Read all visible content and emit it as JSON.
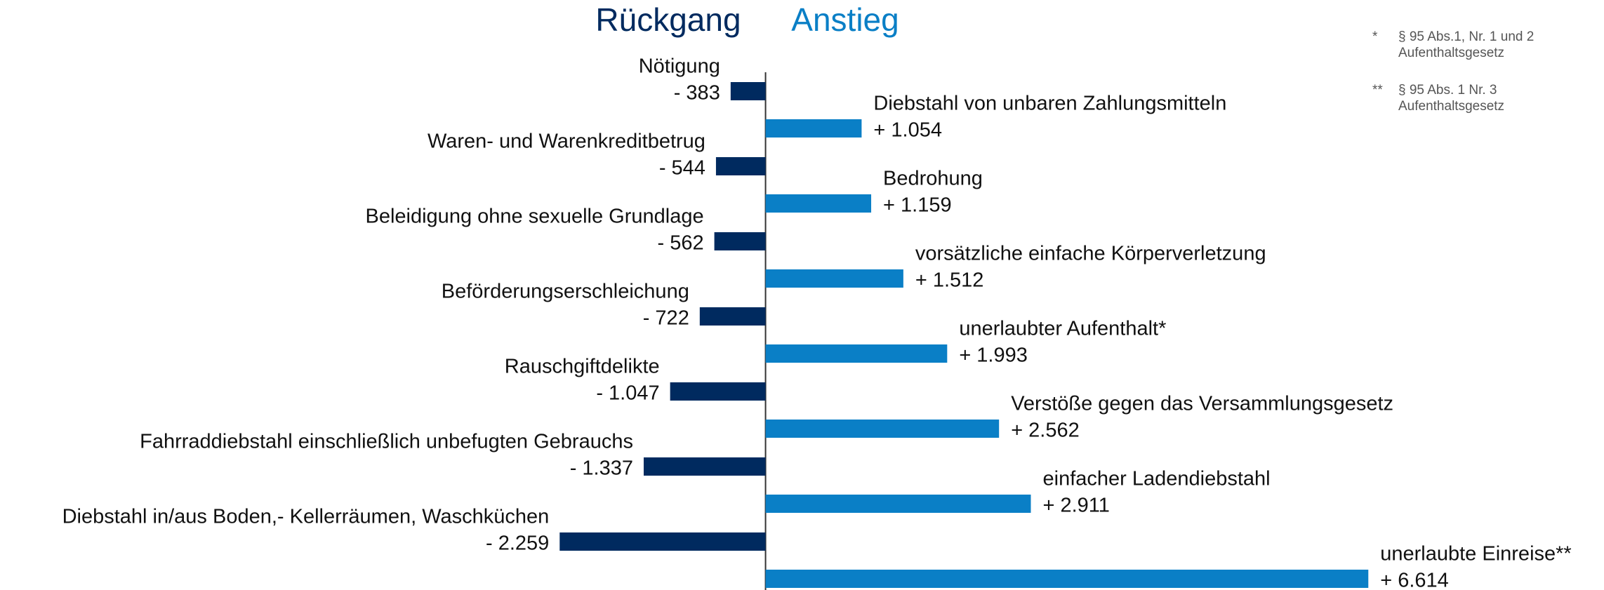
{
  "chart_data": {
    "type": "bar",
    "orientation": "horizontal",
    "xlim": [
      -8400,
      9200
    ],
    "series": [
      {
        "name": "Rückgang",
        "color": "#002a5f",
        "categories": [
          "Nötigung",
          "Waren- und Warenkreditbetrug",
          "Beleidigung ohne sexuelle Grundlage",
          "Beförderungserschleichung",
          "Rauschgiftdelikte",
          "Fahrraddiebstahl einschließlich unbefugten Gebrauchs",
          "Diebstahl in/aus Boden,- Kellerräumen, Waschküchen"
        ],
        "values": [
          -383,
          -544,
          -562,
          -722,
          -1047,
          -1337,
          -2259
        ],
        "value_labels": [
          "- 383",
          "- 544",
          "- 562",
          "- 722",
          "- 1.047",
          "- 1.337",
          "- 2.259"
        ]
      },
      {
        "name": "Anstieg",
        "color": "#0a7fc6",
        "categories": [
          "Diebstahl von unbaren Zahlungsmitteln",
          "Bedrohung",
          "vorsätzliche einfache Körperverletzung",
          "unerlaubter Aufenthalt*",
          "Verstöße gegen das Versammlungsgesetz",
          "einfacher Ladendiebstahl",
          "unerlaubte Einreise**"
        ],
        "values": [
          1054,
          1159,
          1512,
          1993,
          2562,
          2911,
          6614
        ],
        "value_labels": [
          "+ 1.054",
          "+ 1.159",
          "+ 1.512",
          "+ 1.993",
          "+ 2.562",
          "+ 2.911",
          "+ 6.614"
        ]
      }
    ],
    "notes": [
      {
        "marker": "*",
        "lines": [
          "§ 95 Abs.1, Nr. 1 und 2",
          "Aufenthaltsgesetz"
        ]
      },
      {
        "marker": "**",
        "lines": [
          "§ 95 Abs. 1 Nr. 3",
          "Aufenthaltsgesetz"
        ]
      }
    ]
  }
}
